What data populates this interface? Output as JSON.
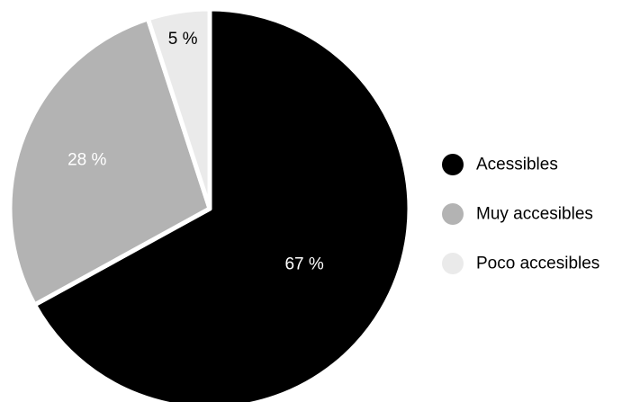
{
  "chart_data": {
    "type": "pie",
    "start_angle_deg": 0,
    "direction": "clockwise",
    "slices": [
      {
        "label": "Acessibles",
        "value": 67,
        "value_label": "67 %",
        "color": "#000000",
        "label_color": "#ffffff"
      },
      {
        "label": "Muy accesibles",
        "value": 28,
        "value_label": "28 %",
        "color": "#b3b3b3",
        "label_color": "#ffffff"
      },
      {
        "label": "Poco accesibles",
        "value": 5,
        "value_label": "5 %",
        "color": "#eaeaea",
        "label_color": "#000000"
      }
    ],
    "legend_position": "right"
  }
}
